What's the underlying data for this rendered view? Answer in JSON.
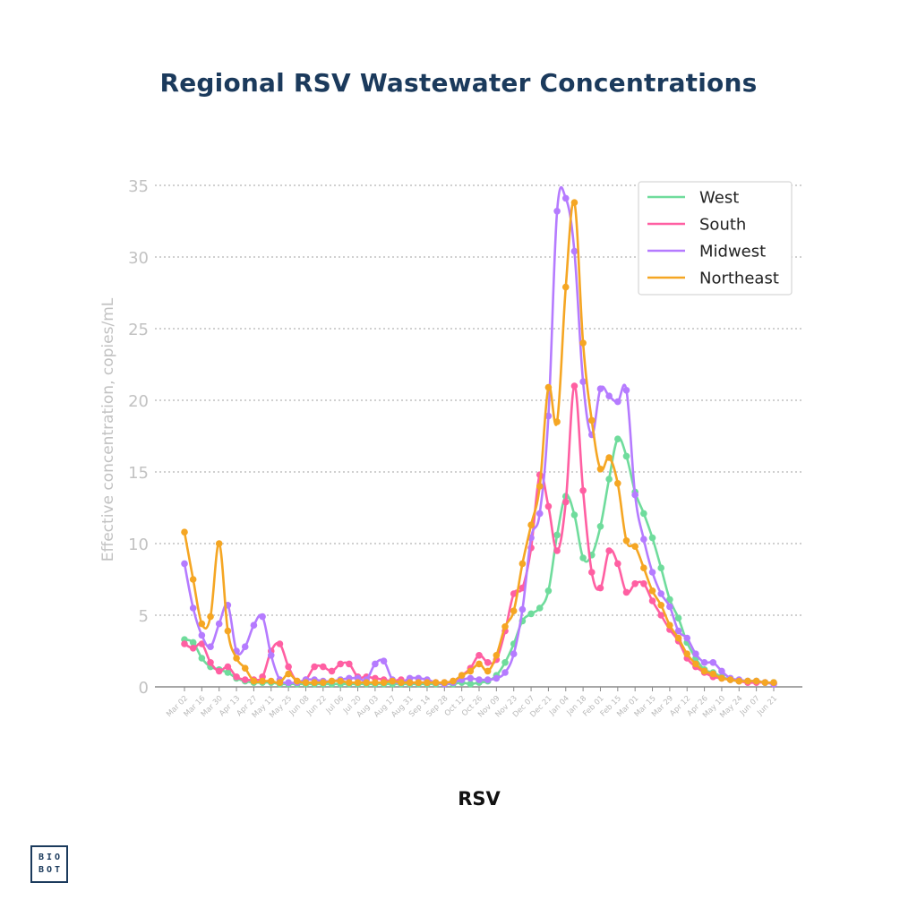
{
  "title": "Regional RSV Wastewater Concentrations",
  "subtitle": "RSV",
  "logo": {
    "line1": "BIO",
    "line2": "BOT"
  },
  "chart_data": {
    "type": "line",
    "title": "Regional RSV Wastewater Concentrations",
    "xlabel": "",
    "ylabel": "Effective concentration, copies/mL",
    "ylim": [
      0,
      35
    ],
    "yticks": [
      0,
      5,
      10,
      15,
      20,
      25,
      30,
      35
    ],
    "grid": "horizontal dotted",
    "legend_position": "top-right",
    "x_tick_labels": [
      "Mar 02",
      "Mar 16",
      "Mar 30",
      "Apr 13",
      "Apr 27",
      "May 11",
      "May 25",
      "Jun 08",
      "Jun 22",
      "Jul 06",
      "Jul 20",
      "Aug 03",
      "Aug 17",
      "Aug 31",
      "Sep 14",
      "Sep 28",
      "Oct 12",
      "Oct 26",
      "Nov 09",
      "Nov 23",
      "Dec 07",
      "Dec 21",
      "Jan 04",
      "Jan 18",
      "Feb 01",
      "Feb 15",
      "Mar 01",
      "Mar 15",
      "Mar 29",
      "Apr 12",
      "Apr 26",
      "May 10",
      "May 24",
      "Jun 07",
      "Jun 21"
    ],
    "x_weeks": [
      "Mar 02",
      "Mar 09",
      "Mar 16",
      "Mar 23",
      "Mar 30",
      "Apr 06",
      "Apr 13",
      "Apr 20",
      "Apr 27",
      "May 04",
      "May 11",
      "May 18",
      "May 25",
      "Jun 01",
      "Jun 08",
      "Jun 15",
      "Jun 22",
      "Jun 29",
      "Jul 06",
      "Jul 13",
      "Jul 20",
      "Jul 27",
      "Aug 03",
      "Aug 10",
      "Aug 17",
      "Aug 24",
      "Aug 31",
      "Sep 07",
      "Sep 14",
      "Sep 21",
      "Sep 28",
      "Oct 05",
      "Oct 12",
      "Oct 19",
      "Oct 26",
      "Nov 02",
      "Nov 09",
      "Nov 16",
      "Nov 23",
      "Nov 30",
      "Dec 07",
      "Dec 14",
      "Dec 21",
      "Dec 28",
      "Jan 04",
      "Jan 11",
      "Jan 18",
      "Jan 25",
      "Feb 01",
      "Feb 08",
      "Feb 15",
      "Feb 22",
      "Mar 01",
      "Mar 08",
      "Mar 15",
      "Mar 22",
      "Mar 29",
      "Apr 05",
      "Apr 12",
      "Apr 19",
      "Apr 26",
      "May 03",
      "May 10",
      "May 17",
      "May 24",
      "May 31",
      "Jun 07",
      "Jun 14",
      "Jun 21"
    ],
    "series": [
      {
        "name": "West",
        "color": "#6fdc9c",
        "values": [
          3.3,
          3.1,
          2.0,
          1.4,
          1.2,
          1.0,
          0.6,
          0.4,
          0.3,
          0.3,
          0.3,
          0.2,
          0.2,
          0.2,
          0.2,
          0.2,
          0.2,
          0.2,
          0.2,
          0.2,
          0.2,
          0.2,
          0.2,
          0.2,
          0.2,
          0.2,
          0.2,
          0.2,
          0.2,
          0.2,
          0.2,
          0.2,
          0.3,
          0.2,
          0.3,
          0.4,
          0.8,
          1.7,
          3.0,
          4.6,
          5.1,
          5.5,
          6.7,
          10.6,
          13.3,
          12.0,
          9.0,
          9.2,
          11.2,
          14.5,
          17.3,
          16.1,
          13.6,
          12.1,
          10.4,
          8.3,
          6.1,
          4.8,
          3.1,
          2.0,
          1.2,
          1.0,
          0.7,
          0.5,
          0.4,
          0.4,
          0.4,
          0.3,
          0.3
        ]
      },
      {
        "name": "South",
        "color": "#ff5fa2",
        "values": [
          3.0,
          2.7,
          3.0,
          1.7,
          1.1,
          1.4,
          0.7,
          0.5,
          0.5,
          0.7,
          2.5,
          3.0,
          1.4,
          0.4,
          0.5,
          1.4,
          1.4,
          1.1,
          1.6,
          1.6,
          0.7,
          0.7,
          0.6,
          0.5,
          0.4,
          0.5,
          0.3,
          0.3,
          0.3,
          0.3,
          0.3,
          0.4,
          0.8,
          1.3,
          2.2,
          1.7,
          1.9,
          3.9,
          6.5,
          6.9,
          9.7,
          14.8,
          12.6,
          9.5,
          12.9,
          21.0,
          13.7,
          8.0,
          6.9,
          9.5,
          8.6,
          6.6,
          7.2,
          7.2,
          6.0,
          5.0,
          4.0,
          3.2,
          2.0,
          1.4,
          1.0,
          0.7,
          0.6,
          0.5,
          0.4,
          0.3,
          0.3,
          0.3,
          0.2
        ]
      },
      {
        "name": "Midwest",
        "color": "#b57bff",
        "values": [
          8.6,
          5.5,
          3.6,
          2.8,
          4.4,
          5.7,
          2.5,
          2.8,
          4.3,
          4.9,
          2.2,
          0.5,
          0.3,
          0.3,
          0.5,
          0.5,
          0.4,
          0.4,
          0.5,
          0.6,
          0.6,
          0.5,
          1.6,
          1.8,
          0.5,
          0.3,
          0.6,
          0.6,
          0.5,
          0.3,
          0.2,
          0.3,
          0.5,
          0.6,
          0.5,
          0.5,
          0.6,
          1.0,
          2.3,
          5.4,
          10.4,
          12.1,
          18.9,
          33.2,
          34.1,
          30.4,
          21.3,
          17.6,
          20.8,
          20.3,
          19.9,
          20.7,
          13.4,
          10.3,
          8.0,
          6.5,
          5.6,
          3.9,
          3.4,
          2.3,
          1.7,
          1.7,
          1.1,
          0.6,
          0.5,
          0.4,
          0.4,
          0.3,
          0.2
        ]
      },
      {
        "name": "Northeast",
        "color": "#f5a623",
        "values": [
          10.8,
          7.5,
          4.4,
          4.9,
          10.0,
          3.9,
          2.0,
          1.3,
          0.4,
          0.4,
          0.4,
          0.3,
          0.9,
          0.4,
          0.3,
          0.3,
          0.3,
          0.4,
          0.4,
          0.3,
          0.3,
          0.3,
          0.3,
          0.3,
          0.4,
          0.3,
          0.3,
          0.3,
          0.3,
          0.3,
          0.3,
          0.4,
          0.8,
          1.1,
          1.6,
          1.1,
          2.2,
          4.2,
          5.3,
          8.6,
          11.3,
          14.0,
          20.9,
          18.5,
          27.9,
          33.8,
          24.0,
          18.6,
          15.2,
          16.0,
          14.2,
          10.2,
          9.8,
          8.3,
          6.7,
          5.7,
          4.3,
          3.4,
          2.3,
          1.6,
          1.1,
          0.9,
          0.6,
          0.5,
          0.4,
          0.4,
          0.4,
          0.3,
          0.3
        ]
      }
    ]
  }
}
